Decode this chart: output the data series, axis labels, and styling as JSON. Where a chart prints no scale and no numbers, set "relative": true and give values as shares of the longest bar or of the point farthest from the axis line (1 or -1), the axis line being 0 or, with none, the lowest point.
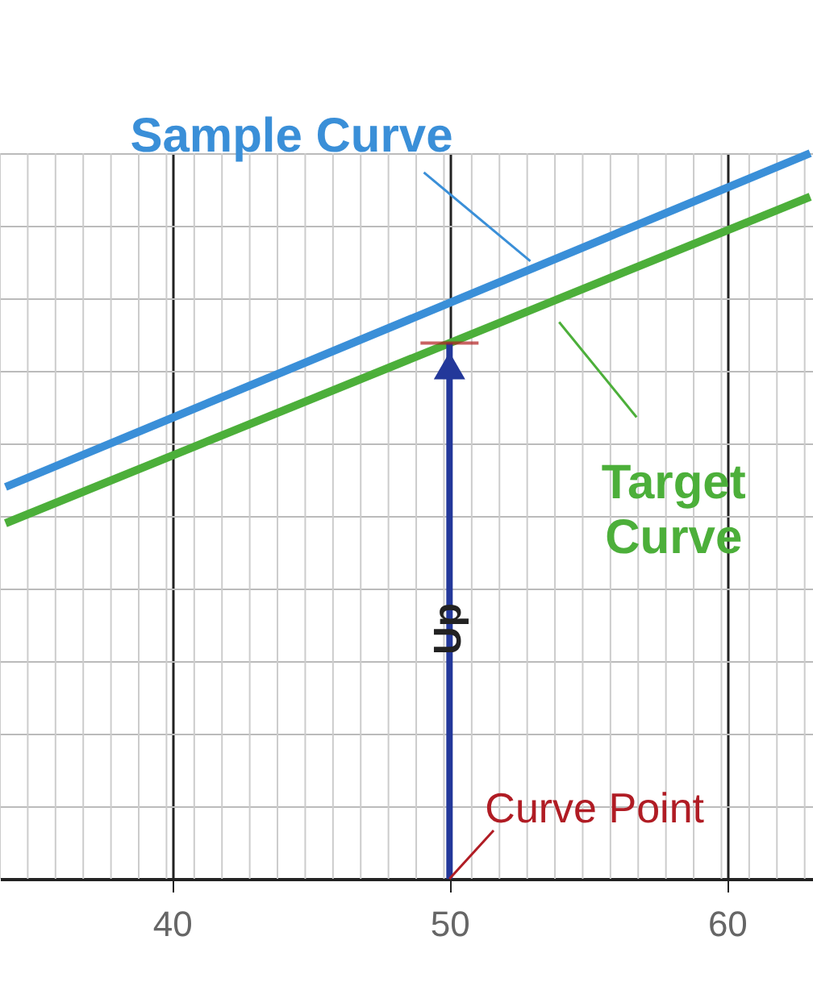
{
  "chart_data": {
    "type": "line",
    "relative": true,
    "xlim": [
      33.8,
      63.1
    ],
    "x": [
      34,
      63
    ],
    "xticks": [
      40,
      50,
      60
    ],
    "grid": true,
    "line_style": "solid",
    "marker": "none",
    "series": [
      {
        "name": "Sample Curve",
        "color": "#3a8fd8",
        "values": [
          0.54,
          1.0
        ]
      },
      {
        "name": "Target Curve",
        "color": "#4caf3a",
        "values": [
          0.49,
          0.94
        ]
      }
    ],
    "ref_lines": [
      {
        "axis": "x",
        "value": 50,
        "label": "Up",
        "color": "#23389a"
      }
    ],
    "annotations": [
      {
        "text": "Curve Point",
        "x": 50,
        "y": 0
      }
    ]
  }
}
